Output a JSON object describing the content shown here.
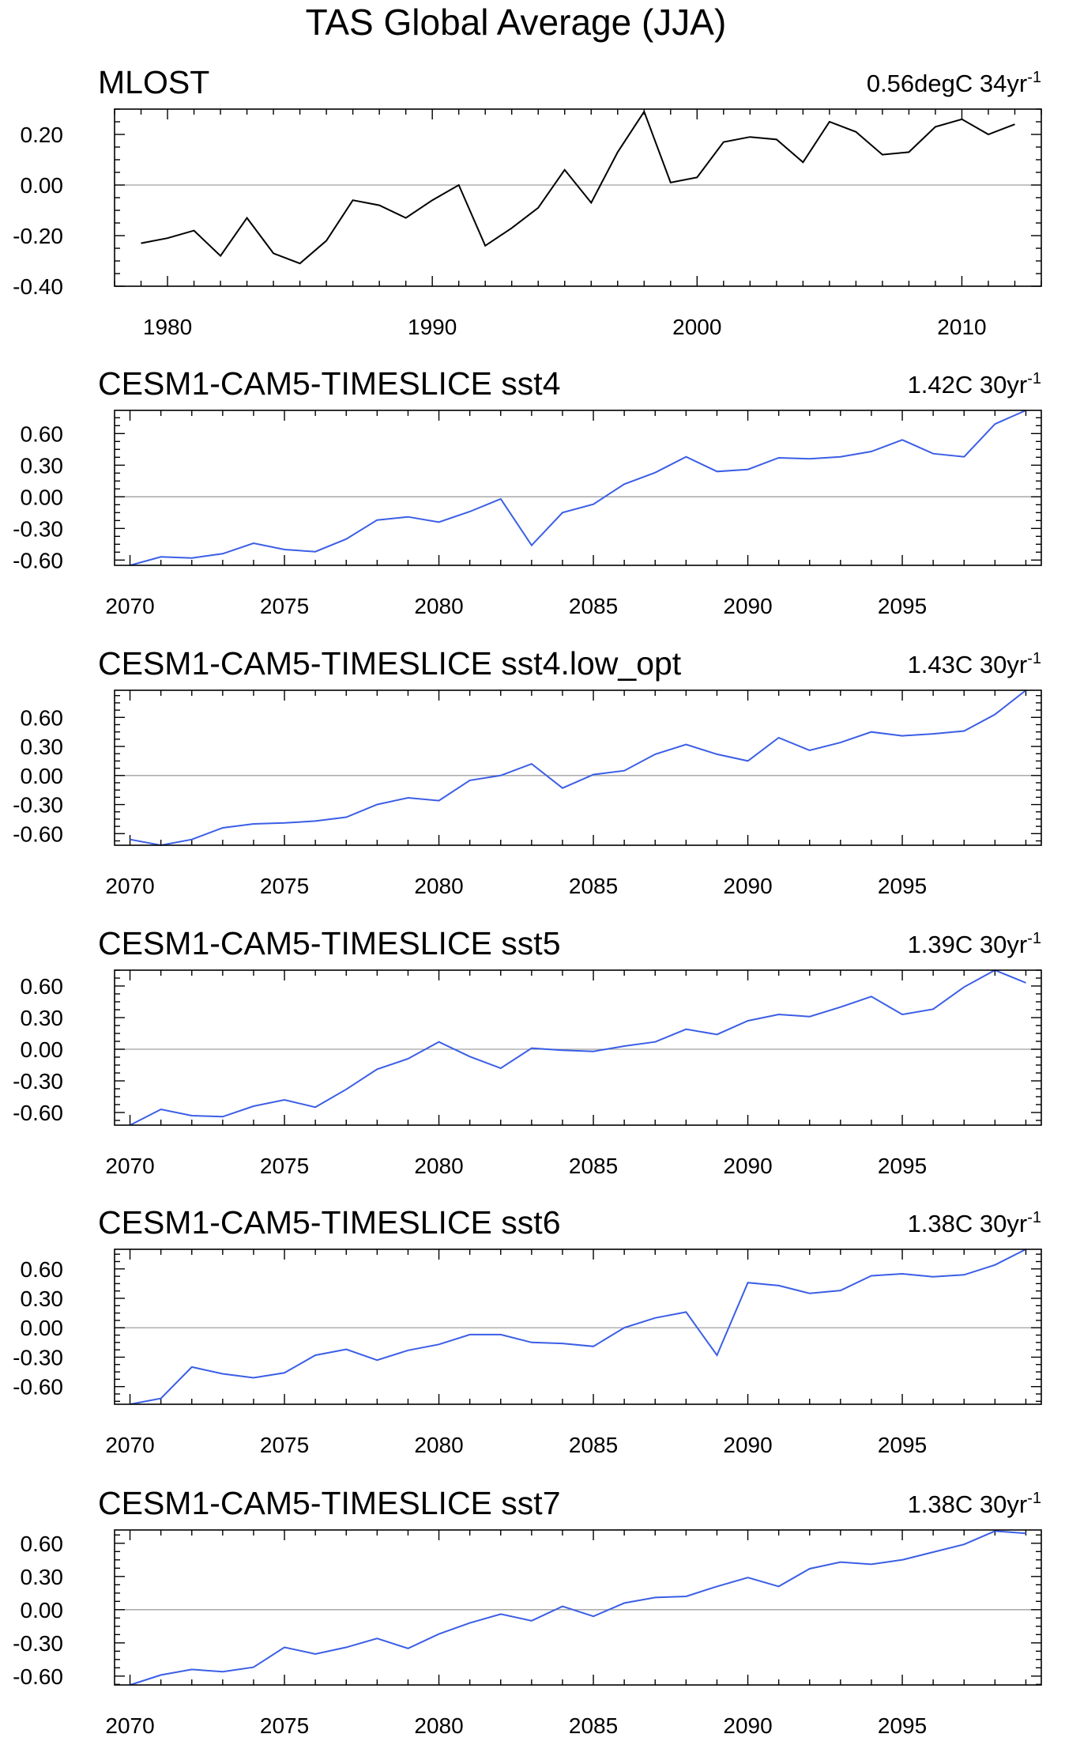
{
  "chart_data": {
    "type": "line",
    "title": "TAS Global Average (JJA)",
    "panels": [
      {
        "title": "MLOST",
        "trend_text": "0.56degC 34yr",
        "trend_sup": "-1",
        "color": "#000000",
        "xlim": [
          1978,
          2013
        ],
        "ylim": [
          -0.4,
          0.3
        ],
        "xticks": [
          1980,
          1990,
          2000,
          2010
        ],
        "yticks": [
          "0.20",
          "0.00",
          "-0.20",
          "-0.40"
        ],
        "x": [
          1979,
          1980,
          1981,
          1982,
          1983,
          1984,
          1985,
          1986,
          1987,
          1988,
          1989,
          1990,
          1991,
          1992,
          1993,
          1994,
          1995,
          1996,
          1997,
          1998,
          1999,
          2000,
          2001,
          2002,
          2003,
          2004,
          2005,
          2006,
          2007,
          2008,
          2009,
          2010,
          2011,
          2012
        ],
        "values": [
          -0.23,
          -0.21,
          -0.18,
          -0.28,
          -0.13,
          -0.27,
          -0.31,
          -0.22,
          -0.06,
          -0.08,
          -0.13,
          -0.06,
          0.0,
          -0.24,
          -0.17,
          -0.09,
          0.06,
          -0.07,
          0.13,
          0.29,
          0.01,
          0.03,
          0.17,
          0.19,
          0.18,
          0.09,
          0.25,
          0.21,
          0.12,
          0.13,
          0.23,
          0.26,
          0.2,
          0.24
        ]
      },
      {
        "title": "CESM1-CAM5-TIMESLICE sst4",
        "trend_text": "1.42C 30yr",
        "trend_sup": "-1",
        "color": "#3b5ee6",
        "xlim": [
          2069.5,
          2099.5
        ],
        "ylim": [
          -0.65,
          0.82
        ],
        "xticks": [
          2070,
          2075,
          2080,
          2085,
          2090,
          2095
        ],
        "yticks": [
          "0.60",
          "0.30",
          "0.00",
          "-0.30",
          "-0.60"
        ],
        "x": [
          2070,
          2071,
          2072,
          2073,
          2074,
          2075,
          2076,
          2077,
          2078,
          2079,
          2080,
          2081,
          2082,
          2083,
          2084,
          2085,
          2086,
          2087,
          2088,
          2089,
          2090,
          2091,
          2092,
          2093,
          2094,
          2095,
          2096,
          2097,
          2098,
          2099
        ],
        "values": [
          -0.65,
          -0.57,
          -0.58,
          -0.54,
          -0.44,
          -0.5,
          -0.52,
          -0.4,
          -0.22,
          -0.19,
          -0.24,
          -0.14,
          -0.02,
          -0.46,
          -0.15,
          -0.07,
          0.12,
          0.23,
          0.38,
          0.24,
          0.26,
          0.37,
          0.36,
          0.38,
          0.43,
          0.54,
          0.41,
          0.38,
          0.69,
          0.82
        ]
      },
      {
        "title": "CESM1-CAM5-TIMESLICE sst4.low_opt",
        "trend_text": "1.43C 30yr",
        "trend_sup": "-1",
        "color": "#3b5ee6",
        "xlim": [
          2069.5,
          2099.5
        ],
        "ylim": [
          -0.72,
          0.88
        ],
        "xticks": [
          2070,
          2075,
          2080,
          2085,
          2090,
          2095
        ],
        "yticks": [
          "0.60",
          "0.30",
          "0.00",
          "-0.30",
          "-0.60"
        ],
        "x": [
          2070,
          2071,
          2072,
          2073,
          2074,
          2075,
          2076,
          2077,
          2078,
          2079,
          2080,
          2081,
          2082,
          2083,
          2084,
          2085,
          2086,
          2087,
          2088,
          2089,
          2090,
          2091,
          2092,
          2093,
          2094,
          2095,
          2096,
          2097,
          2098,
          2099
        ],
        "values": [
          -0.66,
          -0.72,
          -0.66,
          -0.54,
          -0.5,
          -0.49,
          -0.47,
          -0.43,
          -0.3,
          -0.23,
          -0.26,
          -0.05,
          0.0,
          0.12,
          -0.13,
          0.01,
          0.05,
          0.22,
          0.32,
          0.22,
          0.15,
          0.39,
          0.26,
          0.34,
          0.45,
          0.41,
          0.43,
          0.46,
          0.63,
          0.88
        ]
      },
      {
        "title": "CESM1-CAM5-TIMESLICE sst5",
        "trend_text": "1.39C 30yr",
        "trend_sup": "-1",
        "color": "#3b5ee6",
        "xlim": [
          2069.5,
          2099.5
        ],
        "ylim": [
          -0.72,
          0.75
        ],
        "xticks": [
          2070,
          2075,
          2080,
          2085,
          2090,
          2095
        ],
        "yticks": [
          "0.60",
          "0.30",
          "0.00",
          "-0.30",
          "-0.60"
        ],
        "x": [
          2070,
          2071,
          2072,
          2073,
          2074,
          2075,
          2076,
          2077,
          2078,
          2079,
          2080,
          2081,
          2082,
          2083,
          2084,
          2085,
          2086,
          2087,
          2088,
          2089,
          2090,
          2091,
          2092,
          2093,
          2094,
          2095,
          2096,
          2097,
          2098,
          2099
        ],
        "values": [
          -0.72,
          -0.57,
          -0.63,
          -0.64,
          -0.54,
          -0.48,
          -0.55,
          -0.38,
          -0.19,
          -0.09,
          0.07,
          -0.07,
          -0.18,
          0.01,
          -0.01,
          -0.02,
          0.03,
          0.07,
          0.19,
          0.14,
          0.27,
          0.33,
          0.31,
          0.4,
          0.5,
          0.33,
          0.38,
          0.59,
          0.75,
          0.63
        ]
      },
      {
        "title": "CESM1-CAM5-TIMESLICE sst6",
        "trend_text": "1.38C 30yr",
        "trend_sup": "-1",
        "color": "#3b5ee6",
        "xlim": [
          2069.5,
          2099.5
        ],
        "ylim": [
          -0.78,
          0.8
        ],
        "xticks": [
          2070,
          2075,
          2080,
          2085,
          2090,
          2095
        ],
        "yticks": [
          "0.60",
          "0.30",
          "0.00",
          "-0.30",
          "-0.60"
        ],
        "x": [
          2070,
          2071,
          2072,
          2073,
          2074,
          2075,
          2076,
          2077,
          2078,
          2079,
          2080,
          2081,
          2082,
          2083,
          2084,
          2085,
          2086,
          2087,
          2088,
          2089,
          2090,
          2091,
          2092,
          2093,
          2094,
          2095,
          2096,
          2097,
          2098,
          2099
        ],
        "values": [
          -0.78,
          -0.72,
          -0.4,
          -0.47,
          -0.51,
          -0.46,
          -0.28,
          -0.22,
          -0.33,
          -0.23,
          -0.17,
          -0.07,
          -0.07,
          -0.15,
          -0.16,
          -0.19,
          0.0,
          0.1,
          0.16,
          -0.28,
          0.46,
          0.43,
          0.35,
          0.38,
          0.53,
          0.55,
          0.52,
          0.54,
          0.64,
          0.8
        ]
      },
      {
        "title": "CESM1-CAM5-TIMESLICE sst7",
        "trend_text": "1.38C 30yr",
        "trend_sup": "-1",
        "color": "#3b5ee6",
        "xlim": [
          2069.5,
          2099.5
        ],
        "ylim": [
          -0.68,
          0.72
        ],
        "xticks": [
          2070,
          2075,
          2080,
          2085,
          2090,
          2095
        ],
        "yticks": [
          "0.60",
          "0.30",
          "0.00",
          "-0.30",
          "-0.60"
        ],
        "x": [
          2070,
          2071,
          2072,
          2073,
          2074,
          2075,
          2076,
          2077,
          2078,
          2079,
          2080,
          2081,
          2082,
          2083,
          2084,
          2085,
          2086,
          2087,
          2088,
          2089,
          2090,
          2091,
          2092,
          2093,
          2094,
          2095,
          2096,
          2097,
          2098,
          2099
        ],
        "values": [
          -0.68,
          -0.59,
          -0.54,
          -0.56,
          -0.52,
          -0.34,
          -0.4,
          -0.34,
          -0.26,
          -0.35,
          -0.22,
          -0.12,
          -0.04,
          -0.1,
          0.03,
          -0.06,
          0.06,
          0.11,
          0.12,
          0.21,
          0.29,
          0.21,
          0.37,
          0.43,
          0.41,
          0.45,
          0.52,
          0.59,
          0.71,
          0.69
        ]
      }
    ]
  }
}
